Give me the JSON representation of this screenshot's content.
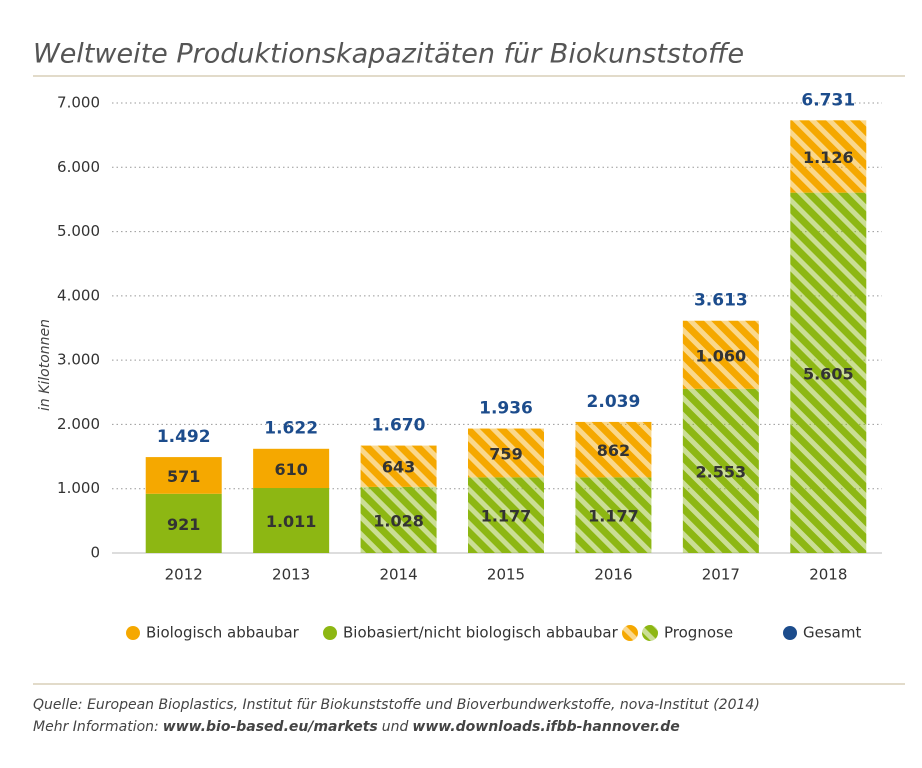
{
  "chart_data": {
    "type": "stacked_bar",
    "title": "Weltweite Produktionskapazitäten für Biokunststoffe",
    "y_label": "in Kilotonnen",
    "categories": [
      "2012",
      "2013",
      "2014",
      "2015",
      "2016",
      "2017",
      "2018"
    ],
    "series": [
      {
        "name": "Biobasiert/nicht biologisch abbaubar",
        "color": "#8db713",
        "values": [
          921,
          1011,
          1028,
          1177,
          1177,
          2553,
          5605
        ],
        "value_labels": [
          "921",
          "1.011",
          "1.028",
          "1.177",
          "1.177",
          "2.553",
          "5.605"
        ]
      },
      {
        "name": "Biologisch abbaubar",
        "color": "#f5a800",
        "values": [
          571,
          610,
          643,
          759,
          862,
          1060,
          1126
        ],
        "value_labels": [
          "571",
          "610",
          "643",
          "759",
          "862",
          "1.060",
          "1.126"
        ]
      }
    ],
    "totals": {
      "name": "Gesamt",
      "color": "#1c4c8c",
      "values": [
        1492,
        1622,
        1670,
        1936,
        2039,
        3613,
        6731
      ],
      "value_labels": [
        "1.492",
        "1.622",
        "1.670",
        "1.936",
        "2.039",
        "3.613",
        "6.731"
      ]
    },
    "forecast": {
      "name": "Prognose",
      "flags": [
        false,
        false,
        true,
        true,
        true,
        true,
        true
      ]
    },
    "ylim": [
      0,
      7000
    ],
    "yticks": [
      0,
      {
        "value": 1000,
        "label": "1.000"
      },
      {
        "value": 2000,
        "label": "2.000"
      },
      {
        "value": 3000,
        "label": "3.000"
      },
      {
        "value": 4000,
        "label": "4.000"
      },
      {
        "value": 5000,
        "label": "5.000"
      },
      {
        "value": 6000,
        "label": "6.000"
      },
      {
        "value": 7000,
        "label": "7.000"
      }
    ],
    "grid": true,
    "source": "Quelle: European Bioplastics, Institut für Biokunststoffe und Bioverbundwerkstoffe, nova-Institut (2014)",
    "more_info": [
      "Mehr Information:",
      "www.bio-based.eu/markets",
      "und",
      "www.downloads.ifbb-hannover.de"
    ]
  }
}
